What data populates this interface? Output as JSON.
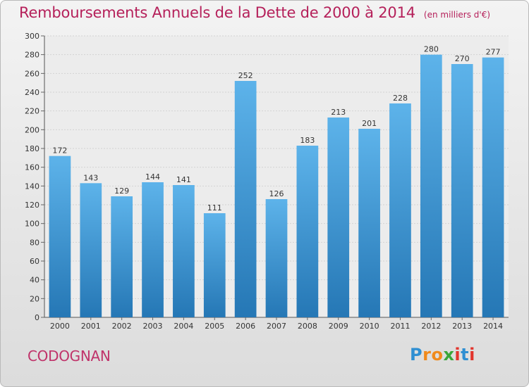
{
  "header": {
    "title": "Remboursements Annuels de la Dette de 2000 à 2014",
    "subtitle": "(en milliers d'€)"
  },
  "footer": {
    "city": "CODOGNAN",
    "logo_text": "Proxiti"
  },
  "colors": {
    "bar_top": "#5db3ea",
    "bar_bottom": "#2577b5",
    "title": "#b5205a"
  },
  "chart_data": {
    "type": "bar",
    "title": "Remboursements Annuels de la Dette de 2000 à 2014",
    "subtitle": "(en milliers d'€)",
    "categories": [
      "2000",
      "2001",
      "2002",
      "2003",
      "2004",
      "2005",
      "2006",
      "2007",
      "2008",
      "2009",
      "2010",
      "2011",
      "2012",
      "2013",
      "2014"
    ],
    "values": [
      172,
      143,
      129,
      144,
      141,
      111,
      252,
      126,
      183,
      213,
      201,
      228,
      280,
      270,
      277
    ],
    "ylim": [
      0,
      300
    ],
    "yticks": [
      0,
      20,
      40,
      60,
      80,
      100,
      120,
      140,
      160,
      180,
      200,
      220,
      240,
      260,
      280,
      300
    ],
    "grid": true,
    "data_labels": true
  }
}
